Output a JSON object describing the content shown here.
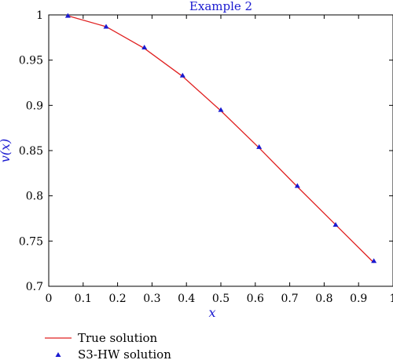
{
  "chart_data": {
    "type": "line",
    "title": "Example 2",
    "xlabel": "x",
    "ylabel": "v(x)",
    "xlim": [
      0,
      1
    ],
    "ylim": [
      0.7,
      1.0
    ],
    "xticks": [
      0,
      0.1,
      0.2,
      0.3,
      0.4,
      0.5,
      0.6,
      0.7,
      0.8,
      0.9,
      1
    ],
    "xtick_labels": [
      "0",
      "0.1",
      "0.2",
      "0.3",
      "0.4",
      "0.5",
      "0.6",
      "0.7",
      "0.8",
      "0.9",
      "1"
    ],
    "yticks": [
      0.7,
      0.75,
      0.8,
      0.85,
      0.9,
      0.95,
      1
    ],
    "ytick_labels": [
      "0.7",
      "0.75",
      "0.8",
      "0.85",
      "0.9",
      "0.95",
      "1"
    ],
    "grid": false,
    "legend_position": "bottom-left, below plot",
    "series": [
      {
        "name": "True solution",
        "style": "line",
        "color": "#e02020",
        "x": [
          0.0556,
          0.1667,
          0.2778,
          0.3889,
          0.5,
          0.6111,
          0.7222,
          0.8333,
          0.9444
        ],
        "y": [
          0.999,
          0.987,
          0.963,
          0.932,
          0.894,
          0.853,
          0.81,
          0.768,
          0.726
        ]
      },
      {
        "name": "S3-HW solution",
        "style": "marker-triangle",
        "color": "#1a1ad0",
        "x": [
          0.0556,
          0.1667,
          0.2778,
          0.3889,
          0.5,
          0.6111,
          0.7222,
          0.8333,
          0.9444
        ],
        "y": [
          0.999,
          0.987,
          0.964,
          0.933,
          0.895,
          0.854,
          0.811,
          0.768,
          0.728
        ]
      }
    ],
    "colors": {
      "title": "#1a1ad0",
      "axis_label": "#1a1ad0",
      "axes": "#000000"
    }
  }
}
